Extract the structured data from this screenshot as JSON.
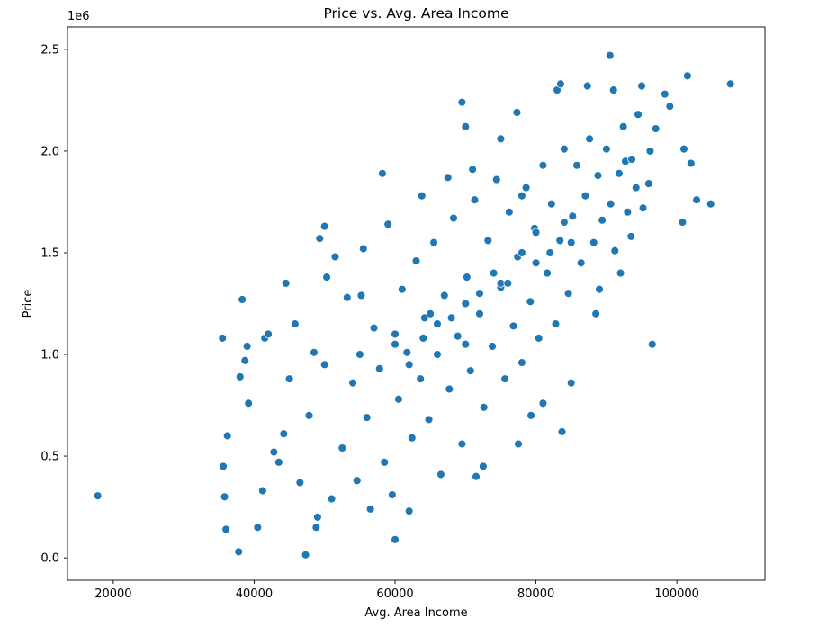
{
  "chart_data": {
    "type": "scatter",
    "title": "Price vs. Avg. Area Income",
    "xlabel": "Avg. Area Income",
    "ylabel": "Price",
    "y_offset_label": "1e6",
    "xlim": [
      13500,
      112500
    ],
    "ylim": [
      -110000,
      2610000
    ],
    "x_ticks": [
      20000,
      40000,
      60000,
      80000,
      100000
    ],
    "x_tick_labels": [
      "20000",
      "40000",
      "60000",
      "80000",
      "100000"
    ],
    "y_ticks": [
      0,
      500000,
      1000000,
      1500000,
      2000000,
      2500000
    ],
    "y_tick_labels": [
      "0.0",
      "0.5",
      "1.0",
      "1.5",
      "2.0",
      "2.5"
    ],
    "grid": false,
    "marker_color": "#1f77b4",
    "series": [
      {
        "points": [
          [
            17800,
            305000
          ],
          [
            35500,
            1080000
          ],
          [
            35600,
            450000
          ],
          [
            35800,
            300000
          ],
          [
            36000,
            140000
          ],
          [
            36200,
            600000
          ],
          [
            37800,
            30000
          ],
          [
            38000,
            890000
          ],
          [
            38300,
            1270000
          ],
          [
            38700,
            970000
          ],
          [
            39000,
            1040000
          ],
          [
            39200,
            760000
          ],
          [
            40500,
            150000
          ],
          [
            41200,
            330000
          ],
          [
            41500,
            1080000
          ],
          [
            42000,
            1100000
          ],
          [
            44500,
            1350000
          ],
          [
            45800,
            1150000
          ],
          [
            47300,
            15000
          ],
          [
            48800,
            150000
          ],
          [
            49000,
            200000
          ],
          [
            49300,
            1570000
          ],
          [
            50000,
            1630000
          ],
          [
            51500,
            1480000
          ],
          [
            56500,
            240000
          ],
          [
            58200,
            1890000
          ],
          [
            60000,
            90000
          ],
          [
            62000,
            230000
          ],
          [
            63800,
            1780000
          ],
          [
            67500,
            1870000
          ],
          [
            69500,
            2240000
          ],
          [
            70000,
            2120000
          ],
          [
            71000,
            1910000
          ],
          [
            71500,
            400000
          ],
          [
            72500,
            450000
          ],
          [
            75000,
            2060000
          ],
          [
            77300,
            2190000
          ],
          [
            77500,
            560000
          ],
          [
            78000,
            1780000
          ],
          [
            79300,
            700000
          ],
          [
            81000,
            760000
          ],
          [
            83000,
            2300000
          ],
          [
            83500,
            2330000
          ],
          [
            83700,
            620000
          ],
          [
            85000,
            860000
          ],
          [
            87300,
            2320000
          ],
          [
            88500,
            1200000
          ],
          [
            89000,
            1320000
          ],
          [
            90500,
            2470000
          ],
          [
            91000,
            2300000
          ],
          [
            92000,
            1400000
          ],
          [
            92700,
            1950000
          ],
          [
            93500,
            1580000
          ],
          [
            94500,
            2180000
          ],
          [
            95000,
            2320000
          ],
          [
            96000,
            1840000
          ],
          [
            96500,
            1050000
          ],
          [
            97000,
            2110000
          ],
          [
            98300,
            2280000
          ],
          [
            99000,
            2220000
          ],
          [
            100800,
            1650000
          ],
          [
            101000,
            2010000
          ],
          [
            101500,
            2370000
          ],
          [
            102000,
            1940000
          ],
          [
            102800,
            1760000
          ],
          [
            104800,
            1740000
          ],
          [
            107600,
            2330000
          ],
          [
            42800,
            520000
          ],
          [
            43500,
            470000
          ],
          [
            44200,
            610000
          ],
          [
            45000,
            880000
          ],
          [
            46500,
            370000
          ],
          [
            47800,
            700000
          ],
          [
            48500,
            1010000
          ],
          [
            50300,
            1380000
          ],
          [
            51000,
            290000
          ],
          [
            52500,
            540000
          ],
          [
            53200,
            1280000
          ],
          [
            54000,
            860000
          ],
          [
            54600,
            380000
          ],
          [
            55500,
            1520000
          ],
          [
            56000,
            690000
          ],
          [
            57000,
            1130000
          ],
          [
            57800,
            930000
          ],
          [
            58500,
            470000
          ],
          [
            59000,
            1640000
          ],
          [
            59600,
            310000
          ],
          [
            60500,
            780000
          ],
          [
            61000,
            1320000
          ],
          [
            61700,
            1010000
          ],
          [
            62400,
            590000
          ],
          [
            63000,
            1460000
          ],
          [
            63600,
            880000
          ],
          [
            64200,
            1180000
          ],
          [
            64800,
            680000
          ],
          [
            65500,
            1550000
          ],
          [
            66000,
            1000000
          ],
          [
            66500,
            410000
          ],
          [
            67000,
            1290000
          ],
          [
            67700,
            830000
          ],
          [
            68300,
            1670000
          ],
          [
            68900,
            1090000
          ],
          [
            69500,
            560000
          ],
          [
            70200,
            1380000
          ],
          [
            70700,
            920000
          ],
          [
            71300,
            1760000
          ],
          [
            72000,
            1200000
          ],
          [
            72600,
            740000
          ],
          [
            73200,
            1560000
          ],
          [
            73800,
            1040000
          ],
          [
            74400,
            1860000
          ],
          [
            75000,
            1330000
          ],
          [
            75600,
            880000
          ],
          [
            76200,
            1700000
          ],
          [
            76800,
            1140000
          ],
          [
            77400,
            1480000
          ],
          [
            78000,
            960000
          ],
          [
            78600,
            1820000
          ],
          [
            79200,
            1260000
          ],
          [
            79800,
            1620000
          ],
          [
            80400,
            1080000
          ],
          [
            81000,
            1930000
          ],
          [
            81600,
            1400000
          ],
          [
            82200,
            1740000
          ],
          [
            82800,
            1150000
          ],
          [
            83400,
            1560000
          ],
          [
            84000,
            2010000
          ],
          [
            84600,
            1300000
          ],
          [
            85200,
            1680000
          ],
          [
            85800,
            1930000
          ],
          [
            86400,
            1450000
          ],
          [
            87000,
            1780000
          ],
          [
            87600,
            2060000
          ],
          [
            88200,
            1550000
          ],
          [
            88800,
            1880000
          ],
          [
            89400,
            1660000
          ],
          [
            90000,
            2010000
          ],
          [
            90600,
            1740000
          ],
          [
            91200,
            1510000
          ],
          [
            91800,
            1890000
          ],
          [
            92400,
            2120000
          ],
          [
            93000,
            1700000
          ],
          [
            93600,
            1960000
          ],
          [
            94200,
            1820000
          ],
          [
            95200,
            1720000
          ],
          [
            96200,
            2000000
          ],
          [
            55200,
            1290000
          ],
          [
            60000,
            1100000
          ],
          [
            65000,
            1200000
          ],
          [
            70000,
            1250000
          ],
          [
            75000,
            1350000
          ],
          [
            80000,
            1450000
          ],
          [
            85000,
            1550000
          ],
          [
            50000,
            950000
          ],
          [
            55000,
            1000000
          ],
          [
            60000,
            1050000
          ],
          [
            62000,
            950000
          ],
          [
            64000,
            1080000
          ],
          [
            66000,
            1150000
          ],
          [
            68000,
            1180000
          ],
          [
            70000,
            1050000
          ],
          [
            72000,
            1300000
          ],
          [
            74000,
            1400000
          ],
          [
            76000,
            1350000
          ],
          [
            78000,
            1500000
          ],
          [
            80000,
            1600000
          ],
          [
            82000,
            1500000
          ],
          [
            84000,
            1650000
          ]
        ]
      }
    ]
  }
}
